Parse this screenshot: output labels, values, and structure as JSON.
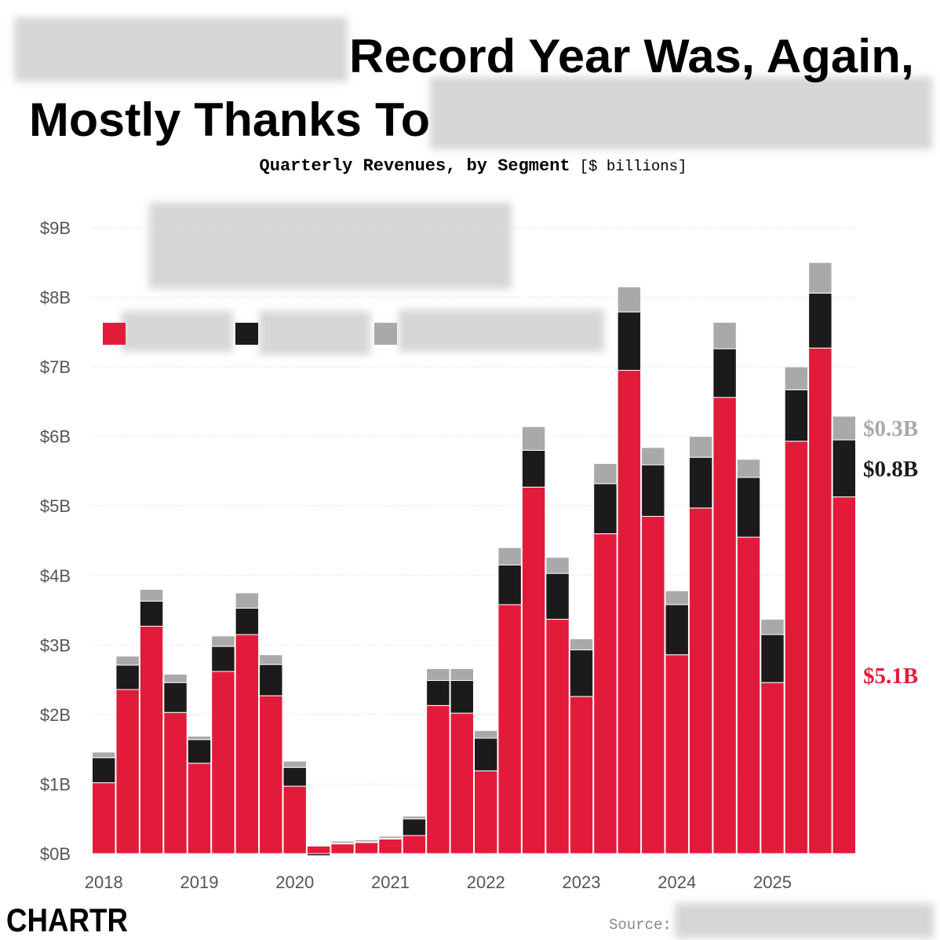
{
  "chart_data": {
    "type": "stacked_bar",
    "title_lines": [
      "Record Year Was, Again,",
      "Mostly Thanks To"
    ],
    "subtitle": "Quarterly Revenues, by Segment",
    "unit_note": "[$ billions]",
    "source_label": "Source:",
    "logo": "CHARTR",
    "categories": [
      "2018",
      null,
      null,
      null,
      "2019",
      null,
      null,
      null,
      "2020",
      null,
      null,
      null,
      "2021",
      null,
      null,
      null,
      "2022",
      null,
      null,
      null,
      "2023",
      null,
      null,
      null,
      "2024",
      null,
      null,
      null,
      "2025",
      null,
      null,
      null
    ],
    "series": [
      {
        "color": "#e31b3a",
        "last_label": "$5.1B",
        "values": [
          1.02,
          2.36,
          3.27,
          2.03,
          1.3,
          2.62,
          3.15,
          2.27,
          0.97,
          0.11,
          0.14,
          0.16,
          0.21,
          0.26,
          2.13,
          2.02,
          1.19,
          3.58,
          5.27,
          3.37,
          2.26,
          4.6,
          6.95,
          4.85,
          2.86,
          4.97,
          6.56,
          4.55,
          2.46,
          5.93,
          7.27,
          5.13
        ]
      },
      {
        "color": "#1c1a1b",
        "last_label": "$0.8B",
        "values": [
          0.36,
          0.35,
          0.36,
          0.43,
          0.34,
          0.36,
          0.38,
          0.45,
          0.27,
          -0.03,
          0.01,
          0.01,
          0.01,
          0.24,
          0.36,
          0.47,
          0.47,
          0.57,
          0.53,
          0.66,
          0.67,
          0.72,
          0.84,
          0.74,
          0.72,
          0.73,
          0.7,
          0.86,
          0.69,
          0.74,
          0.79,
          0.82
        ]
      },
      {
        "color": "#a9a9a9",
        "last_label": "$0.3B",
        "values": [
          0.08,
          0.13,
          0.17,
          0.12,
          0.05,
          0.15,
          0.22,
          0.14,
          0.09,
          0.01,
          0.03,
          0.03,
          0.03,
          0.04,
          0.17,
          0.17,
          0.11,
          0.25,
          0.34,
          0.23,
          0.16,
          0.29,
          0.36,
          0.25,
          0.2,
          0.3,
          0.38,
          0.26,
          0.22,
          0.33,
          0.44,
          0.34
        ]
      }
    ],
    "ylim": [
      0,
      9
    ],
    "yticks": [
      {
        "value": 0,
        "label": "$0B"
      },
      {
        "value": 1,
        "label": "$1B"
      },
      {
        "value": 2,
        "label": "$2B"
      },
      {
        "value": 3,
        "label": "$3B"
      },
      {
        "value": 4,
        "label": "$4B"
      },
      {
        "value": 5,
        "label": "$5B"
      },
      {
        "value": 6,
        "label": "$6B"
      },
      {
        "value": 7,
        "label": "$7B"
      },
      {
        "value": 8,
        "label": "$8B"
      },
      {
        "value": 9,
        "label": "$9B"
      }
    ],
    "grid": true
  }
}
